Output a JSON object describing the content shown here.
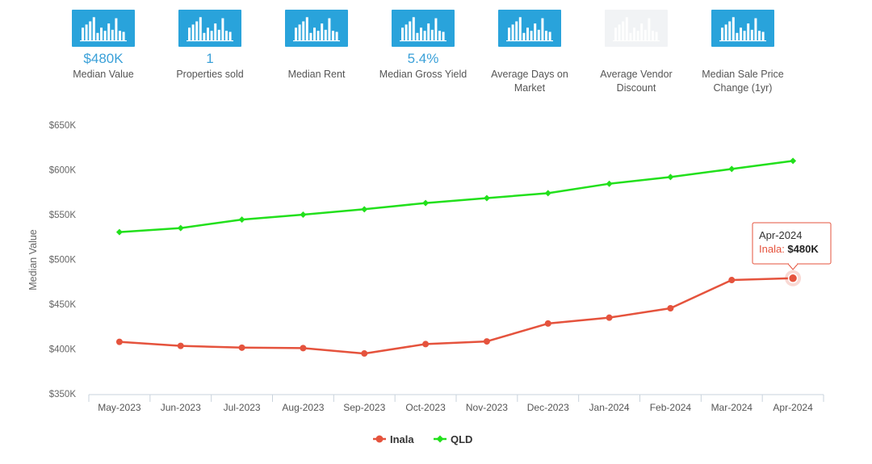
{
  "stats": [
    {
      "value": "$480K",
      "label": "Median Value",
      "faded": false
    },
    {
      "value": "1",
      "label": "Properties sold",
      "faded": false
    },
    {
      "value": "",
      "label": "Median Rent",
      "faded": false
    },
    {
      "value": "5.4%",
      "label": "Median Gross Yield",
      "faded": false
    },
    {
      "value": "",
      "label": "Average Days on Market",
      "faded": false
    },
    {
      "value": "",
      "label": "Average Vendor Discount",
      "faded": true
    },
    {
      "value": "",
      "label": "Median Sale Price Change (1yr)",
      "faded": false
    }
  ],
  "stat_icon": "bar-chart-icon",
  "chart_data": {
    "type": "line",
    "x": [
      "May-2023",
      "Jun-2023",
      "Jul-2023",
      "Aug-2023",
      "Sep-2023",
      "Oct-2023",
      "Nov-2023",
      "Dec-2023",
      "Jan-2024",
      "Feb-2024",
      "Mar-2024",
      "Apr-2024"
    ],
    "series": [
      {
        "name": "Inala",
        "color": "#e5533d",
        "marker": "circle",
        "values": [
          408000,
          403500,
          401500,
          401000,
          395000,
          405500,
          408500,
          428500,
          435000,
          445500,
          477000,
          479000
        ]
      },
      {
        "name": "QLD",
        "color": "#22e01c",
        "marker": "diamond",
        "values": [
          530500,
          535000,
          544500,
          550000,
          556000,
          563000,
          568500,
          574000,
          584500,
          592000,
          601000,
          610000
        ]
      }
    ],
    "ylabel": "Median Value",
    "ylim": [
      350000,
      650000
    ],
    "yticks": [
      "$350K",
      "$400K",
      "$450K",
      "$500K",
      "$550K",
      "$600K",
      "$650K"
    ],
    "ytick_values": [
      350000,
      400000,
      450000,
      500000,
      550000,
      600000,
      650000
    ],
    "grid": false,
    "legend": "bottom-center",
    "tooltip": {
      "title": "Apr-2024",
      "series": "Inala",
      "label": "Inala:",
      "value": "$480K"
    }
  }
}
